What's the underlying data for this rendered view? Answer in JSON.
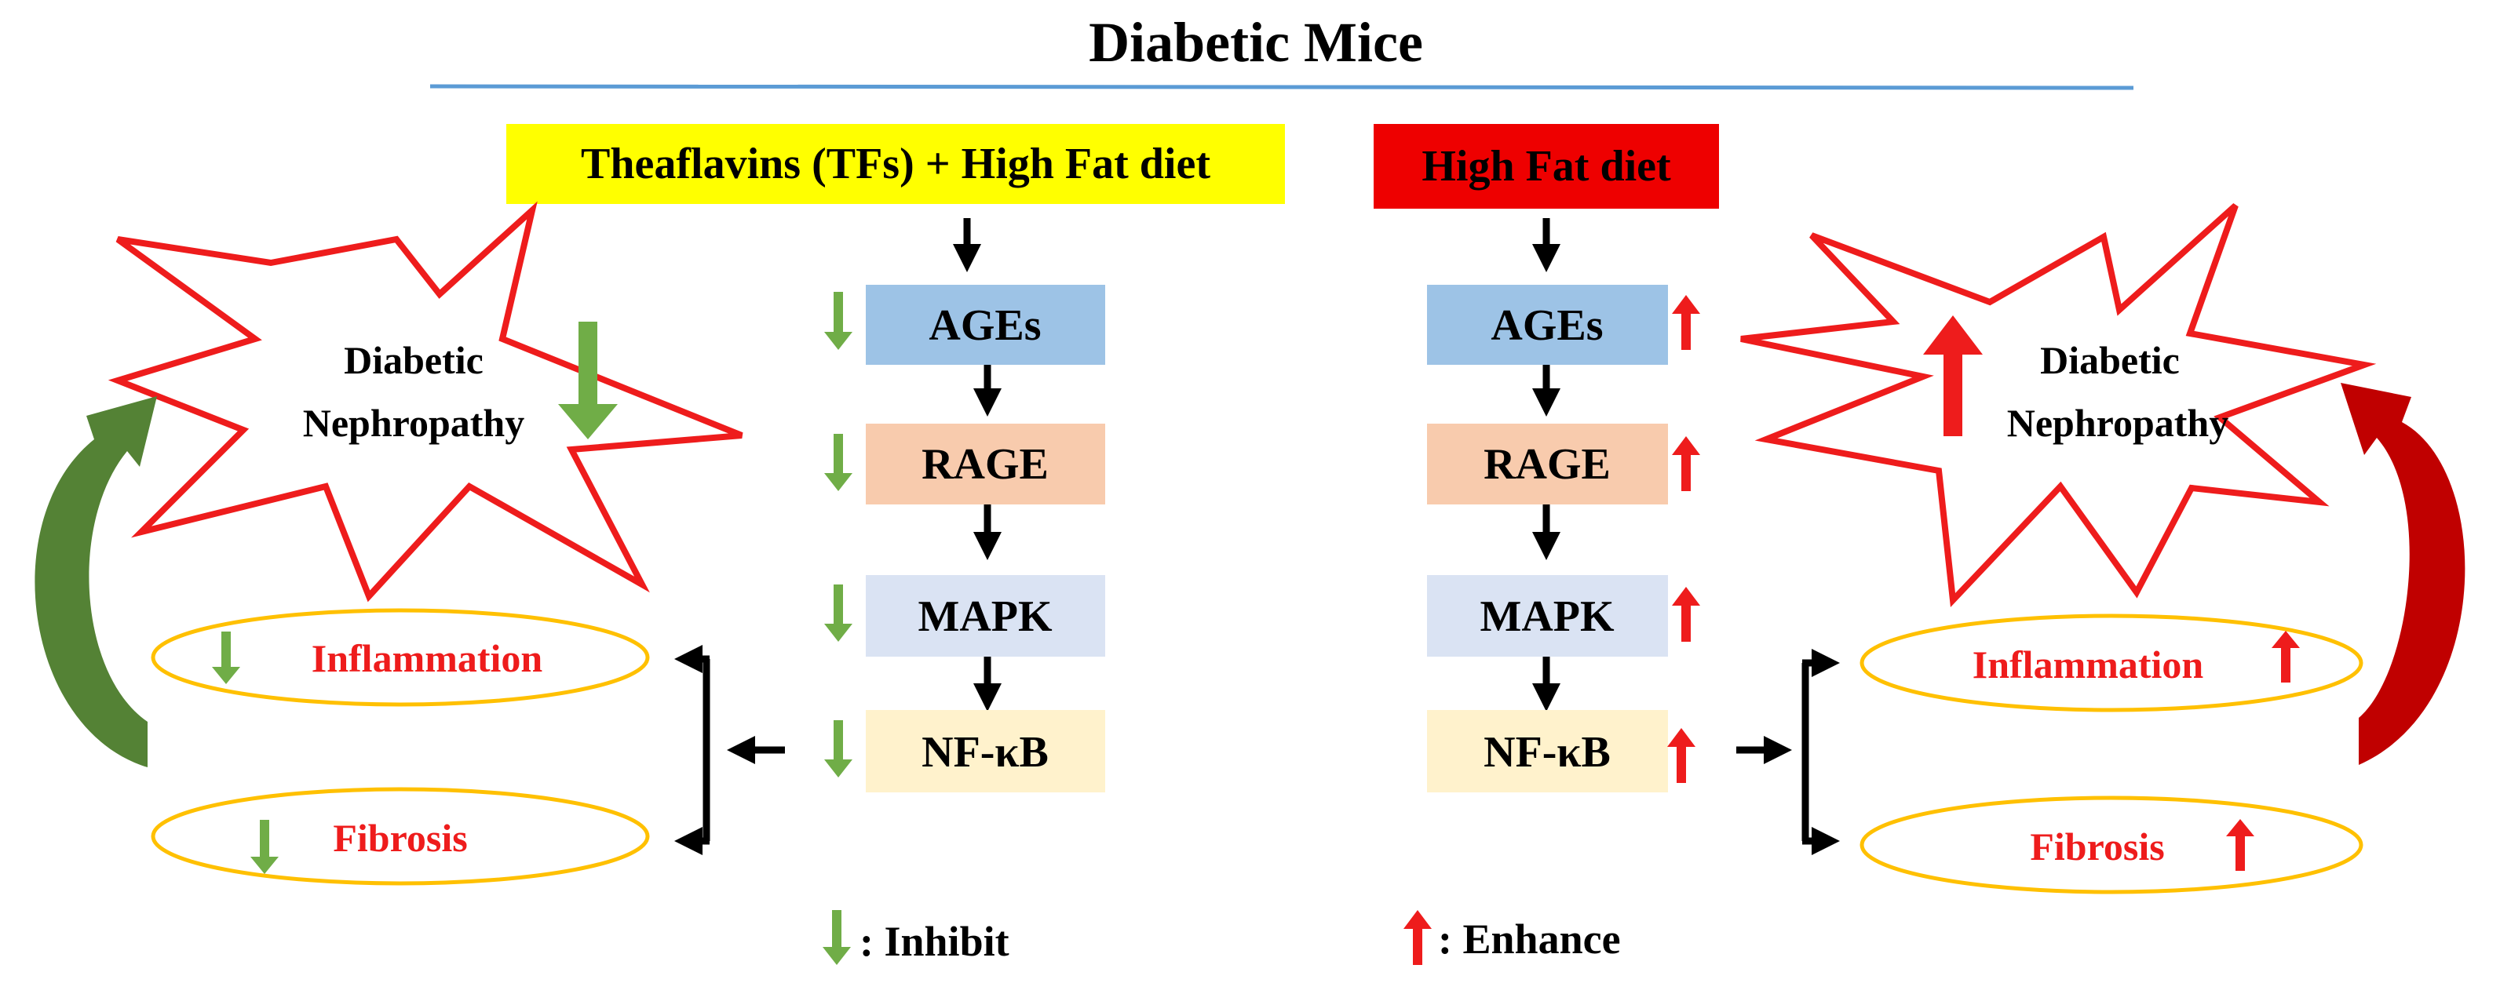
{
  "title": "Diabetic Mice",
  "colors": {
    "green": "#70ad47",
    "dark_green": "#548235",
    "red": "#ee1c1c",
    "yellow": "#ffff00",
    "ages_fill": "#9dc3e6",
    "rage_fill": "#f8cbad",
    "mapk_fill": "#dae3f3",
    "nfkb_fill": "#fff2cc",
    "ellipse_stroke": "#ffc000",
    "divider": "#5b9bd5"
  },
  "treatment": {
    "header": "Theaflavins (TFs) + High Fat diet",
    "pathway": [
      "AGEs",
      "RAGE",
      "MAPK",
      "NF-κB"
    ],
    "nephropathy": {
      "line1": "Diabetic",
      "line2": "Nephropathy"
    },
    "outcomes": [
      "Inflammation",
      "Fibrosis"
    ]
  },
  "control": {
    "header": "High Fat diet",
    "pathway": [
      "AGEs",
      "RAGE",
      "MAPK",
      "NF-κB"
    ],
    "nephropathy": {
      "line1": "Diabetic",
      "line2": "Nephropathy"
    },
    "outcomes": [
      "Inflammation",
      "Fibrosis"
    ]
  },
  "legend": {
    "inhibit": ": Inhibit",
    "enhance": ": Enhance"
  }
}
